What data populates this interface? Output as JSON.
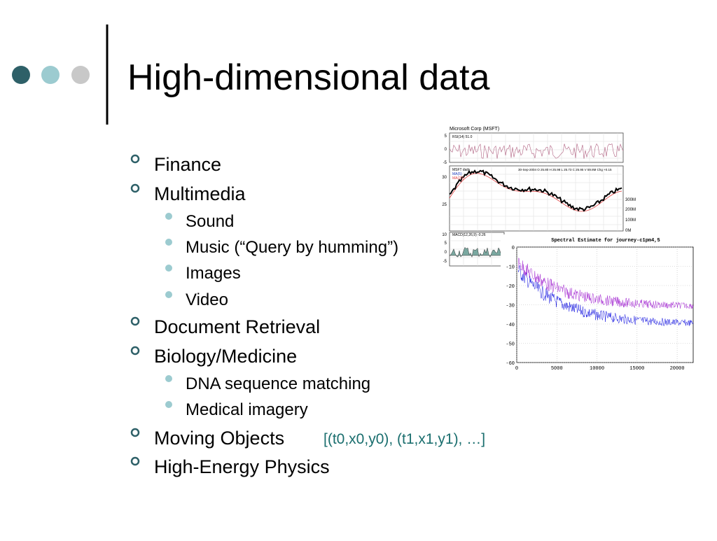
{
  "header": {
    "title": "High-dimensional data"
  },
  "bullets": [
    {
      "text": "Finance",
      "level": 1
    },
    {
      "text": "Multimedia",
      "level": 1
    },
    {
      "text": "Sound",
      "level": 2
    },
    {
      "text": "Music  (“Query by humming”)",
      "level": 2
    },
    {
      "text": "Images",
      "level": 2
    },
    {
      "text": "Video",
      "level": 2
    },
    {
      "text": "Document Retrieval",
      "level": 1
    },
    {
      "text": "Biology/Medicine",
      "level": 1
    },
    {
      "text": "DNA sequence matching",
      "level": 2
    },
    {
      "text": "Medical imagery",
      "level": 2
    },
    {
      "text": "Moving Objects",
      "level": 1,
      "note": "[(t0,x0,y0), (t1,x1,y1), …]"
    },
    {
      "text": "High-Energy Physics",
      "level": 1
    }
  ],
  "figures": {
    "finance": {
      "title": "Microsoft Corp (MSFT)",
      "rsi_label": "RSI(14) 51.0",
      "price_label": "MSFT daily",
      "ma5": "MA(5)",
      "ma20": "MA(20)",
      "quote": "30-Sep-2004 O 25.80 H 25.98 L 25.73 C 25.95 V 59.8M Chg +0.15",
      "macd_label": "MACD(12,26,9) -0.26",
      "rsi_ticks": [
        "5",
        "0",
        "-5"
      ],
      "price_ticks": [
        "30",
        "25"
      ],
      "volume_ticks": [
        "300M",
        "200M",
        "100M",
        "0M"
      ],
      "macd_ticks": [
        "10",
        "5",
        "0",
        "-5"
      ]
    },
    "spectral": {
      "title": "Spectral Estimate for journey-c1pm4,5",
      "xlim": [
        0,
        22000
      ],
      "ylim": [
        -60,
        0
      ],
      "xticks": [
        0,
        5000,
        10000,
        15000,
        20000
      ],
      "yticks": [
        0,
        -10,
        -20,
        -30,
        -40,
        -50,
        -60
      ]
    }
  }
}
